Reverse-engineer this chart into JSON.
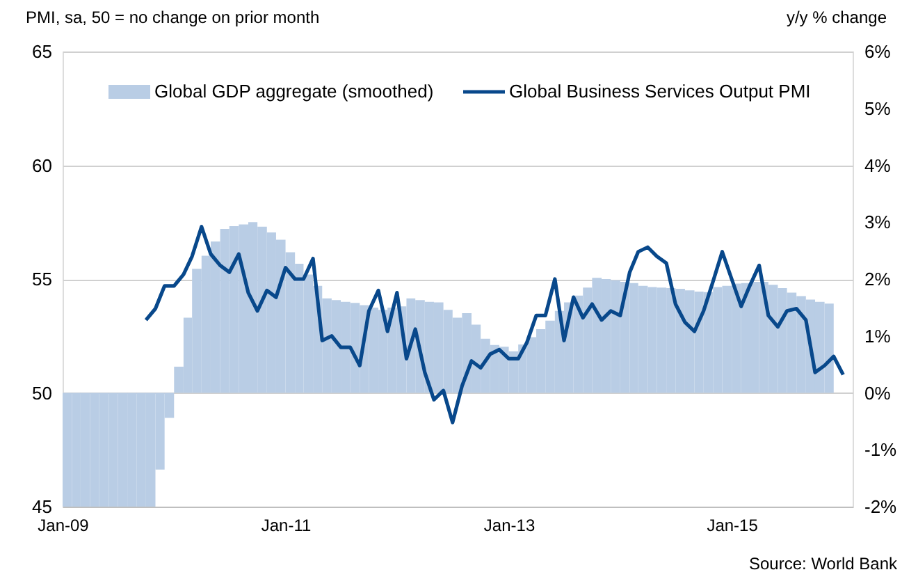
{
  "chart_data": {
    "type": "bar",
    "ylabel": "PMI, sa, 50 = no change on prior month",
    "y2label": "y/y % change",
    "xlim": [
      "2009-01",
      "2016-02"
    ],
    "xticks": [
      {
        "value": "2009-01",
        "label": "Jan-09"
      },
      {
        "value": "2011-01",
        "label": "Jan-11"
      },
      {
        "value": "2013-01",
        "label": "Jan-13"
      },
      {
        "value": "2015-01",
        "label": "Jan-15"
      }
    ],
    "ylim": [
      45,
      65
    ],
    "yticks": [
      45,
      50,
      55,
      60,
      65
    ],
    "y2lim": [
      -2,
      6
    ],
    "y2ticks": [
      {
        "value": -2,
        "label": "-2%"
      },
      {
        "value": -1,
        "label": "-1%"
      },
      {
        "value": 0,
        "label": "0%"
      },
      {
        "value": 1,
        "label": "1%"
      },
      {
        "value": 2,
        "label": "2%"
      },
      {
        "value": 3,
        "label": "3%"
      },
      {
        "value": 4,
        "label": "4%"
      },
      {
        "value": 5,
        "label": "5%"
      },
      {
        "value": 6,
        "label": "6%"
      }
    ],
    "grid": "y",
    "legend": "top",
    "annotations": [
      "Source: World Bank"
    ],
    "series": [
      {
        "name": "Global GDP aggregate (smoothed)",
        "axis": "y2",
        "color": "#b9cde5",
        "x": [
          "2009-01",
          "2009-02",
          "2009-03",
          "2009-04",
          "2009-05",
          "2009-06",
          "2009-07",
          "2009-08",
          "2009-09",
          "2009-10",
          "2009-11",
          "2009-12",
          "2010-01",
          "2010-02",
          "2010-03",
          "2010-04",
          "2010-05",
          "2010-06",
          "2010-07",
          "2010-08",
          "2010-09",
          "2010-10",
          "2010-11",
          "2010-12",
          "2011-01",
          "2011-02",
          "2011-03",
          "2011-04",
          "2011-05",
          "2011-06",
          "2011-07",
          "2011-08",
          "2011-09",
          "2011-10",
          "2011-11",
          "2011-12",
          "2012-01",
          "2012-02",
          "2012-03",
          "2012-04",
          "2012-05",
          "2012-06",
          "2012-07",
          "2012-08",
          "2012-09",
          "2012-10",
          "2012-11",
          "2012-12",
          "2013-01",
          "2013-02",
          "2013-03",
          "2013-04",
          "2013-05",
          "2013-06",
          "2013-07",
          "2013-08",
          "2013-09",
          "2013-10",
          "2013-11",
          "2013-12",
          "2014-01",
          "2014-02",
          "2014-03",
          "2014-04",
          "2014-05",
          "2014-06",
          "2014-07",
          "2014-08",
          "2014-09",
          "2014-10",
          "2014-11",
          "2014-12",
          "2015-01",
          "2015-02",
          "2015-03",
          "2015-04",
          "2015-05",
          "2015-06",
          "2015-07",
          "2015-08",
          "2015-09",
          "2015-10",
          "2015-11"
        ],
        "values": [
          -2.0,
          -2.0,
          -2.0,
          -2.0,
          -2.0,
          -2.0,
          -2.0,
          -2.0,
          -2.0,
          -2.0,
          -1.35,
          -0.44,
          0.46,
          1.32,
          2.18,
          2.41,
          2.66,
          2.88,
          2.93,
          2.96,
          3.0,
          2.92,
          2.82,
          2.69,
          2.47,
          2.27,
          2.08,
          1.88,
          1.66,
          1.63,
          1.6,
          1.58,
          1.54,
          1.5,
          1.46,
          1.5,
          1.52,
          1.66,
          1.63,
          1.6,
          1.59,
          1.46,
          1.32,
          1.4,
          1.2,
          0.95,
          0.84,
          0.81,
          0.73,
          0.85,
          0.98,
          1.12,
          1.27,
          1.44,
          1.59,
          1.71,
          1.85,
          2.02,
          2.0,
          1.98,
          1.95,
          1.93,
          1.88,
          1.86,
          1.85,
          1.84,
          1.83,
          1.8,
          1.78,
          1.77,
          1.86,
          1.88,
          1.92,
          1.93,
          1.95,
          1.95,
          1.9,
          1.84,
          1.76,
          1.7,
          1.64,
          1.6,
          1.57
        ]
      },
      {
        "name": "Global Business Services Output PMI",
        "type": "line",
        "color": "#08488b",
        "x": [
          "2009-10",
          "2009-11",
          "2009-12",
          "2010-01",
          "2010-02",
          "2010-03",
          "2010-04",
          "2010-05",
          "2010-06",
          "2010-07",
          "2010-08",
          "2010-09",
          "2010-10",
          "2010-11",
          "2010-12",
          "2011-01",
          "2011-02",
          "2011-03",
          "2011-04",
          "2011-05",
          "2011-06",
          "2011-07",
          "2011-08",
          "2011-09",
          "2011-10",
          "2011-11",
          "2011-12",
          "2012-01",
          "2012-02",
          "2012-03",
          "2012-04",
          "2012-05",
          "2012-06",
          "2012-07",
          "2012-08",
          "2012-09",
          "2012-10",
          "2012-11",
          "2012-12",
          "2013-01",
          "2013-02",
          "2013-03",
          "2013-04",
          "2013-05",
          "2013-06",
          "2013-07",
          "2013-08",
          "2013-09",
          "2013-10",
          "2013-11",
          "2013-12",
          "2014-01",
          "2014-02",
          "2014-03",
          "2014-04",
          "2014-05",
          "2014-06",
          "2014-07",
          "2014-08",
          "2014-09",
          "2014-10",
          "2014-11",
          "2014-12",
          "2015-01",
          "2015-02",
          "2015-03",
          "2015-04",
          "2015-05",
          "2015-06",
          "2015-07",
          "2015-08",
          "2015-09",
          "2015-10",
          "2015-11",
          "2015-12",
          "2016-01"
        ],
        "values": [
          53.2,
          53.7,
          54.7,
          54.7,
          55.2,
          56.0,
          57.3,
          56.1,
          55.6,
          55.3,
          56.1,
          54.4,
          53.6,
          54.5,
          54.2,
          55.5,
          55.0,
          55.0,
          55.9,
          52.3,
          52.5,
          52.0,
          52.0,
          51.2,
          53.6,
          54.5,
          52.7,
          54.4,
          51.5,
          52.8,
          50.9,
          49.7,
          50.1,
          48.7,
          50.3,
          51.4,
          51.1,
          51.7,
          51.9,
          51.5,
          51.5,
          52.2,
          53.4,
          53.4,
          55.0,
          52.3,
          54.2,
          53.3,
          53.9,
          53.2,
          53.6,
          53.4,
          55.3,
          56.2,
          56.4,
          56.0,
          55.7,
          53.9,
          53.1,
          52.7,
          53.6,
          54.9,
          56.2,
          55.0,
          53.8,
          54.7,
          55.6,
          53.4,
          52.9,
          53.6,
          53.7,
          53.2,
          50.9,
          51.2,
          51.6,
          50.8
        ]
      }
    ]
  }
}
